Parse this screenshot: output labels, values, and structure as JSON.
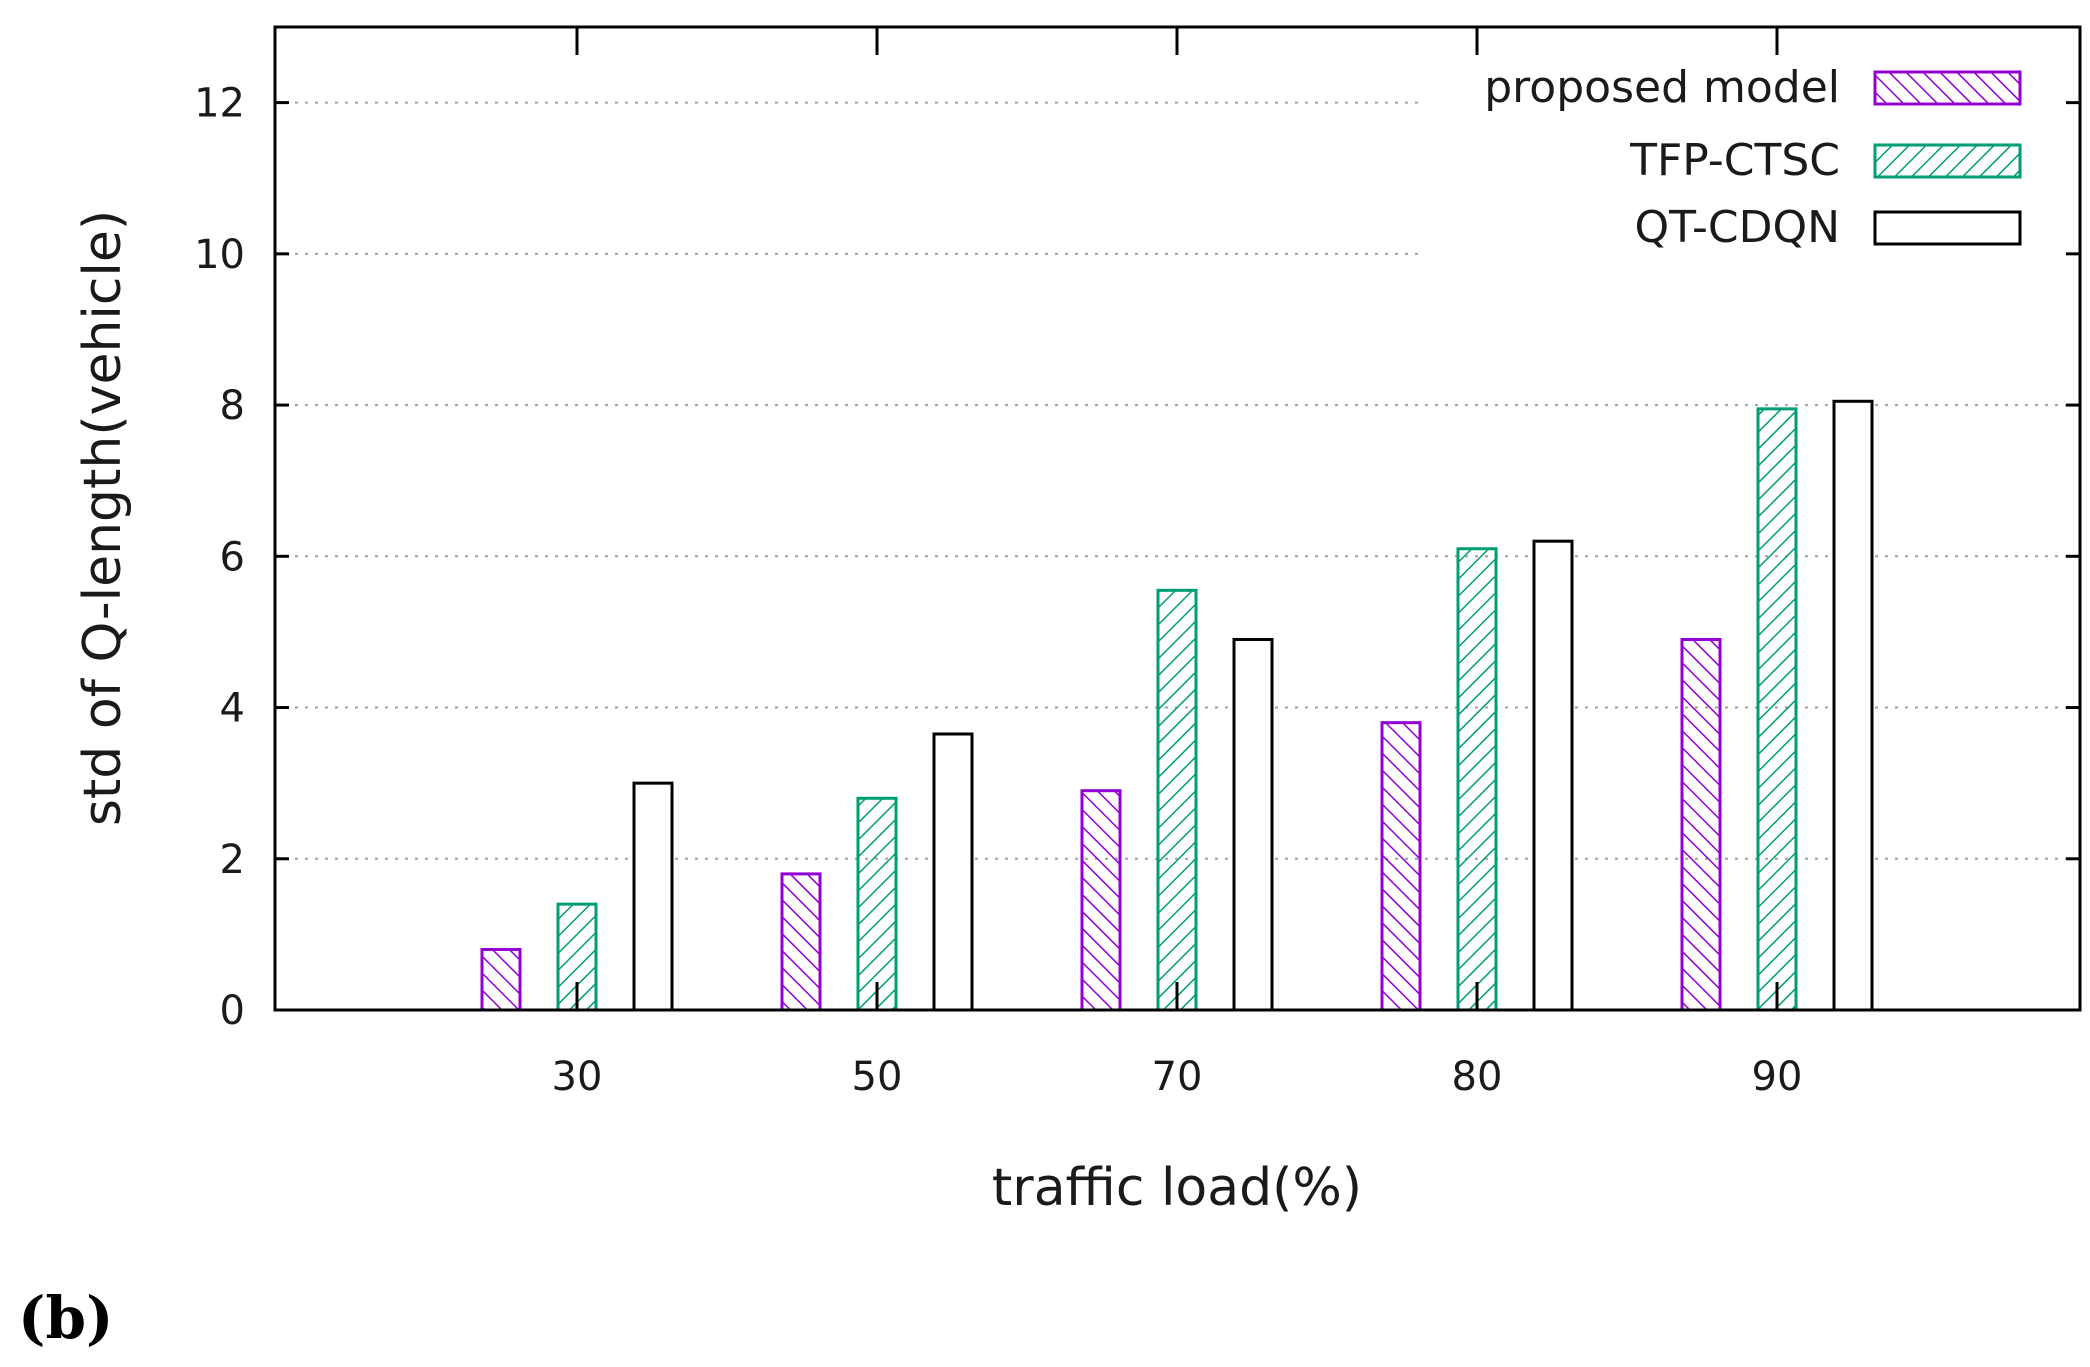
{
  "panel_label": "(b)",
  "colors": {
    "proposed": "#9400d3",
    "tfp": "#009e73",
    "qt": "#000000",
    "grid": "#a0a0a0",
    "axis": "#000000"
  },
  "chart_data": {
    "type": "bar",
    "title": "",
    "xlabel": "traffic load(%)",
    "ylabel": "std of Q-length(vehicle)",
    "categories": [
      "30",
      "50",
      "70",
      "80",
      "90"
    ],
    "ylim": [
      0,
      13
    ],
    "yticks": [
      0,
      2,
      4,
      6,
      8,
      10,
      12
    ],
    "grid": true,
    "legend_position": "top-right",
    "series": [
      {
        "name": "proposed model",
        "values": [
          0.8,
          1.8,
          2.9,
          3.8,
          4.9
        ],
        "pattern": "hatch-down",
        "color_key": "proposed"
      },
      {
        "name": "TFP-CTSC",
        "values": [
          1.4,
          2.8,
          5.55,
          6.1,
          7.95
        ],
        "pattern": "hatch-up",
        "color_key": "tfp"
      },
      {
        "name": "QT-CDQN",
        "values": [
          3.0,
          3.65,
          4.9,
          6.2,
          8.05
        ],
        "pattern": "empty",
        "color_key": "qt"
      }
    ]
  }
}
